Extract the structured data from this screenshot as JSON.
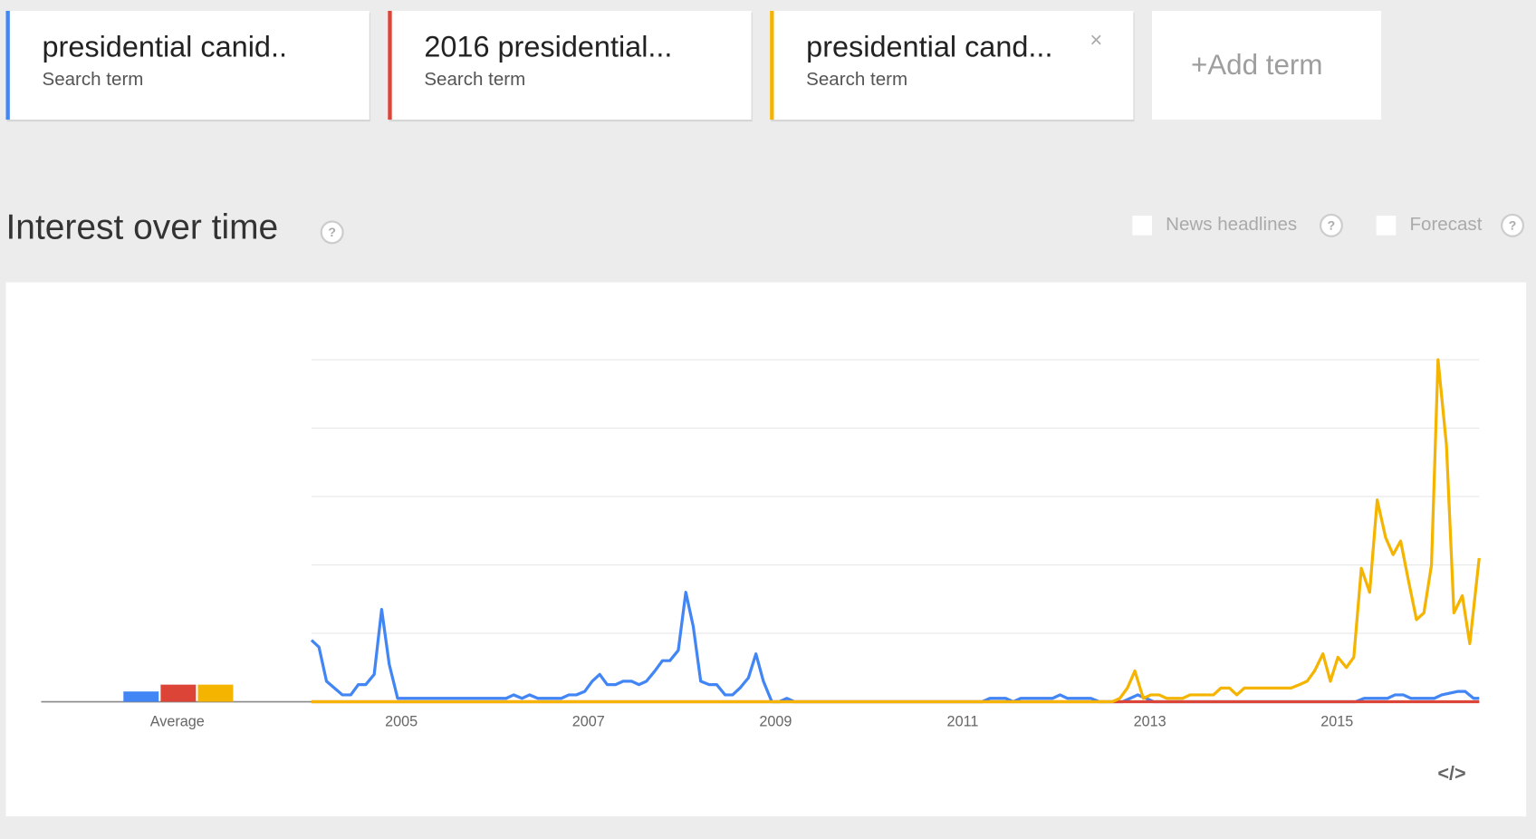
{
  "search_terms": [
    {
      "title": "presidential canid..",
      "subtitle": "Search term"
    },
    {
      "title": "2016 presidential...",
      "subtitle": "Search term"
    },
    {
      "title": "presidential cand...",
      "subtitle": "Search term",
      "close": "×"
    }
  ],
  "add_term": "+Add term",
  "section_title": "Interest over time",
  "help_icon": "?",
  "options": [
    "News headlines",
    "Forecast"
  ],
  "embed_icon": "</>",
  "chart_data": {
    "type": "line",
    "xlim": [
      2004.04,
      2016.52
    ],
    "xticks": [
      2005,
      2007,
      2009,
      2011,
      2013,
      2015
    ],
    "ylim": [
      0,
      100
    ],
    "yticks": [
      0,
      20,
      40,
      60,
      80,
      100
    ],
    "grid": true,
    "average": {
      "label": "Average",
      "values": [
        3,
        5,
        5
      ]
    },
    "series": [
      {
        "name": "presidential canid..",
        "color": "#4285f4",
        "x": [
          2004.04,
          2004.12,
          2004.2,
          2004.37,
          2004.46,
          2004.54,
          2004.62,
          2004.71,
          2004.79,
          2004.87,
          2004.96,
          2006.12,
          2006.2,
          2006.29,
          2006.37,
          2006.46,
          2006.71,
          2006.79,
          2006.87,
          2006.96,
          2007.04,
          2007.12,
          2007.2,
          2007.29,
          2007.37,
          2007.46,
          2007.54,
          2007.62,
          2007.71,
          2007.79,
          2007.87,
          2007.96,
          2008.04,
          2008.12,
          2008.2,
          2008.29,
          2008.37,
          2008.46,
          2008.54,
          2008.62,
          2008.71,
          2008.79,
          2008.87,
          2008.96,
          2009.04,
          2009.12,
          2009.2,
          2011.21,
          2011.29,
          2011.46,
          2011.54,
          2011.62,
          2011.96,
          2012.04,
          2012.12,
          2012.37,
          2012.46,
          2012.71,
          2012.79,
          2012.87,
          2012.96,
          2013.04,
          2015.2,
          2015.29,
          2015.54,
          2015.62,
          2015.71,
          2015.79,
          2016.04,
          2016.12,
          2016.29,
          2016.37,
          2016.46,
          2016.52
        ],
        "values": [
          18,
          16,
          6,
          2,
          2,
          5,
          5,
          8,
          27,
          11,
          1,
          1,
          2,
          1,
          2,
          1,
          1,
          2,
          2,
          3,
          6,
          8,
          5,
          5,
          6,
          6,
          5,
          6,
          9,
          12,
          12,
          15,
          32,
          22,
          6,
          5,
          5,
          2,
          2,
          4,
          7,
          14,
          6,
          0,
          0,
          1,
          0,
          0,
          1,
          1,
          0,
          1,
          1,
          2,
          1,
          1,
          0,
          0,
          1,
          2,
          1,
          0,
          0,
          1,
          1,
          2,
          2,
          1,
          1,
          2,
          3,
          3,
          1,
          1
        ]
      },
      {
        "name": "2016 presidential...",
        "color": "#db4437",
        "x": [
          2004.04,
          2016.52
        ],
        "values": [
          0,
          0
        ]
      },
      {
        "name": "presidential cand...",
        "color": "#f4b400",
        "x": [
          2004.04,
          2012.6,
          2012.68,
          2012.76,
          2012.84,
          2012.93,
          2013.01,
          2013.1,
          2013.18,
          2013.35,
          2013.43,
          2013.68,
          2013.76,
          2013.85,
          2013.93,
          2014.01,
          2014.51,
          2014.6,
          2014.68,
          2014.76,
          2014.85,
          2014.93,
          2015.01,
          2015.1,
          2015.18,
          2015.26,
          2015.35,
          2015.43,
          2015.52,
          2015.6,
          2015.68,
          2015.76,
          2015.85,
          2015.93,
          2016.01,
          2016.08,
          2016.17,
          2016.25,
          2016.34,
          2016.42,
          2016.52
        ],
        "values": [
          0,
          0,
          1,
          4,
          9,
          1,
          2,
          2,
          1,
          1,
          2,
          2,
          4,
          4,
          2,
          4,
          4,
          5,
          6,
          9,
          14,
          6,
          13,
          10,
          13,
          39,
          32,
          59,
          48,
          43,
          47,
          36,
          24,
          26,
          40,
          100,
          75,
          26,
          31,
          17,
          42
        ]
      }
    ]
  }
}
